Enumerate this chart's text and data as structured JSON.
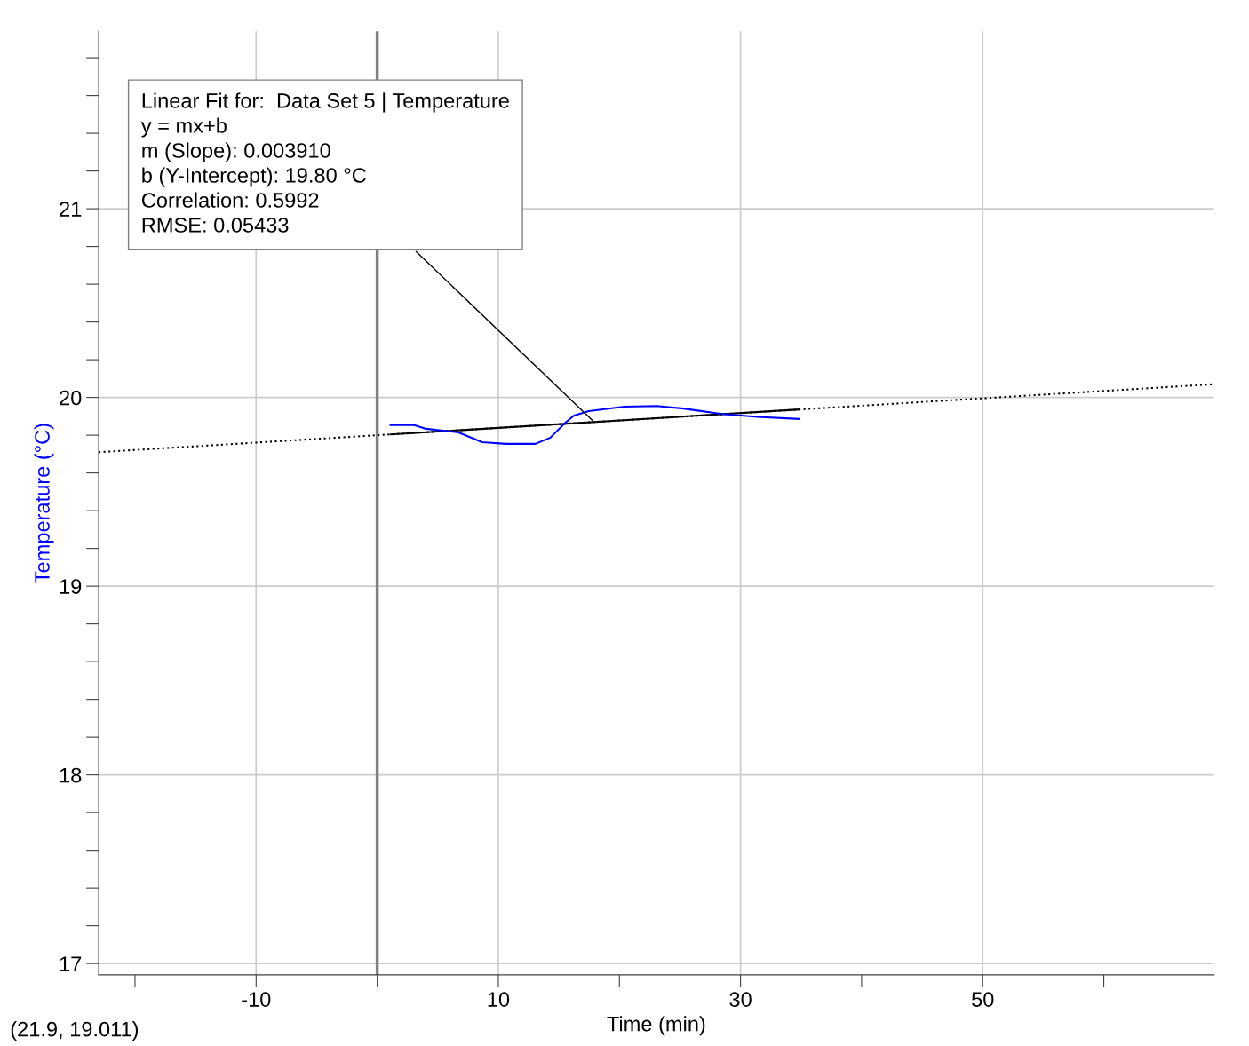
{
  "chart_data": {
    "type": "line",
    "xlabel": "Time (min)",
    "ylabel": "Temperature (°C)",
    "xlim": [
      -23.0,
      69.1
    ],
    "ylim": [
      16.94,
      21.94
    ],
    "xticks": [
      {
        "value": -20,
        "label": null
      },
      -10,
      {
        "value": 0,
        "label": null
      },
      10,
      {
        "value": 20,
        "label": null
      },
      30,
      {
        "value": 40,
        "label": null
      },
      50,
      {
        "value": 60,
        "label": null
      }
    ],
    "yticks": [
      17,
      {
        "value": 17.2,
        "label": null
      },
      {
        "value": 17.4,
        "label": null
      },
      {
        "value": 17.6,
        "label": null
      },
      {
        "value": 17.8,
        "label": null
      },
      18,
      {
        "value": 18.2,
        "label": null
      },
      {
        "value": 18.4,
        "label": null
      },
      {
        "value": 18.6,
        "label": null
      },
      {
        "value": 18.8,
        "label": null
      },
      19,
      {
        "value": 19.2,
        "label": null
      },
      {
        "value": 19.4,
        "label": null
      },
      {
        "value": 19.6,
        "label": null
      },
      {
        "value": 19.8,
        "label": null
      },
      20,
      {
        "value": 20.2,
        "label": null
      },
      {
        "value": 20.4,
        "label": null
      },
      {
        "value": 20.6,
        "label": null
      },
      {
        "value": 20.8,
        "label": null
      },
      21,
      {
        "value": 21.2,
        "label": null
      },
      {
        "value": 21.4,
        "label": null
      },
      {
        "value": 21.6,
        "label": null
      },
      {
        "value": 21.8,
        "label": null
      }
    ],
    "grid": true,
    "legend": false,
    "marker": "none",
    "series": [
      {
        "color": "#000000",
        "line_style": "dotted",
        "x": [
          -23.0,
          69.1
        ],
        "values": [
          19.71,
          20.07
        ]
      },
      {
        "color": "#000000",
        "line_style": "solid",
        "x": [
          1.1,
          34.8
        ],
        "values": [
          19.804,
          19.936
        ]
      },
      {
        "color": "#0000ff",
        "line_style": "solid",
        "x": [
          1.1,
          3.06,
          4.03,
          6.72,
          8.67,
          10.63,
          13.07,
          14.3,
          15.52,
          16.25,
          17.47,
          20.4,
          23.09,
          25.29,
          28.47,
          31.4,
          34.82
        ],
        "values": [
          19.854,
          19.854,
          19.834,
          19.815,
          19.763,
          19.754,
          19.754,
          19.787,
          19.865,
          19.904,
          19.928,
          19.951,
          19.955,
          19.941,
          19.912,
          19.897,
          19.886
        ]
      }
    ],
    "ref_lines": [
      {
        "axis": "x",
        "value": 0,
        "color": "#808080"
      }
    ],
    "annotations": [
      {
        "text": "Linear Fit for:  Data Set 5 | Temperature\ny = mx+b\nm (Slope): 0.003910\nb (Y-Intercept): 19.80 °C\nCorrelation: 0.5992\nRMSE: 0.05433",
        "x": 17.9,
        "y": 19.87
      },
      "(21.9, 19.011)"
    ]
  }
}
